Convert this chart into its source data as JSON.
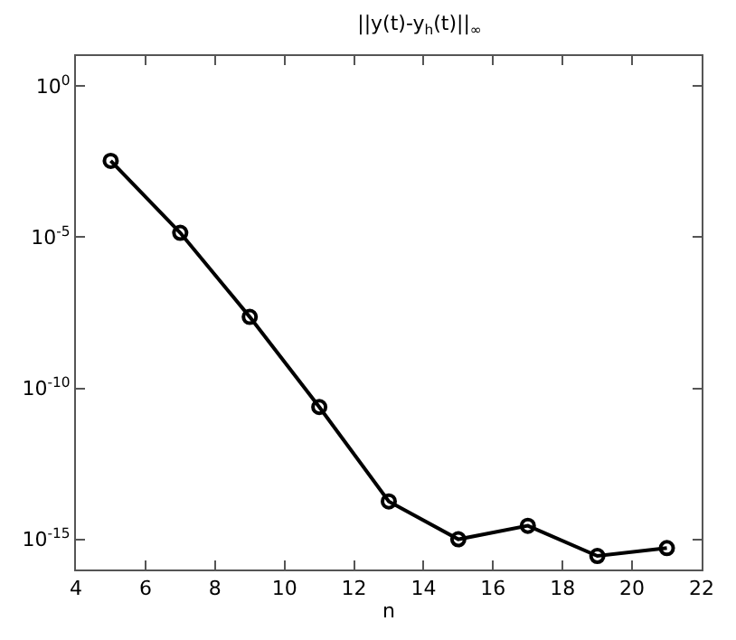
{
  "chart_data": {
    "type": "line",
    "title": "||y(t)-y$_{h}$(t)||$_{∞}$",
    "xlabel": "n",
    "x": [
      5,
      7,
      9,
      11,
      13,
      15,
      17,
      19,
      21
    ],
    "series": [
      {
        "color": "#000000",
        "values": [
          0.0034,
          1.4e-05,
          2.3e-08,
          2.4e-11,
          1.8e-14,
          1e-15,
          2.8e-15,
          2.8e-16,
          5.1e-16
        ]
      }
    ],
    "log": "y",
    "marker": "circle",
    "line_style": "solid",
    "xlim": [
      4,
      22
    ],
    "xticks": [
      4,
      6,
      8,
      10,
      12,
      14,
      16,
      18,
      20,
      22
    ],
    "ylim": [
      1e-16,
      10
    ],
    "yticks": [
      {
        "value": 1e-15,
        "label": "10$^{-15}$"
      },
      {
        "value": 1e-10,
        "label": "10$^{-10}$"
      },
      {
        "value": 1e-05,
        "label": "10$^{-5}$"
      },
      {
        "value": 1,
        "label": "10$^{0}$"
      }
    ]
  }
}
